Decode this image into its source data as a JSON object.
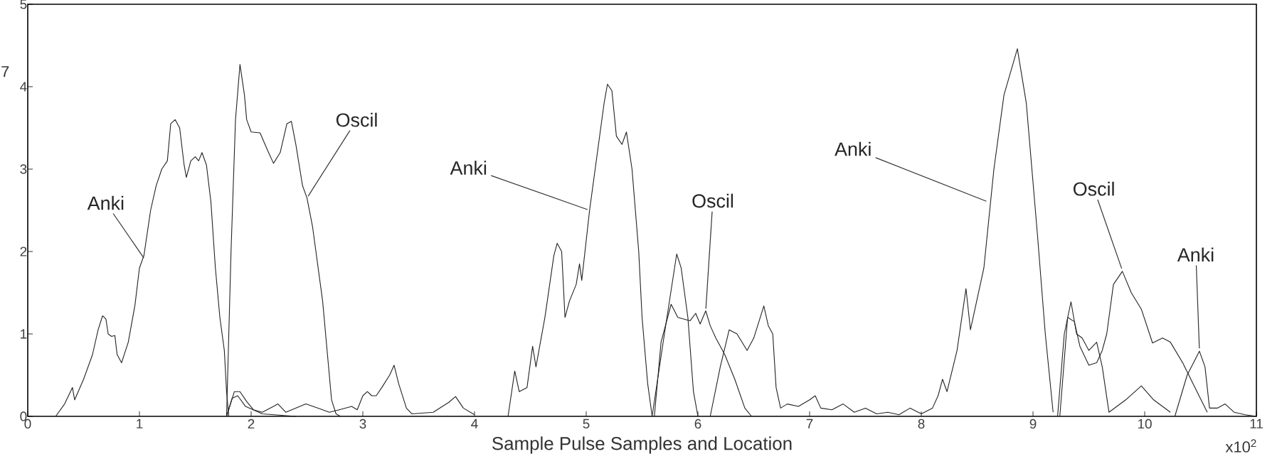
{
  "chart_data": {
    "type": "line",
    "xlabel": "Sample Pulse Samples and Location",
    "xlim": [
      0,
      11
    ],
    "xticks": [
      0,
      1,
      2,
      3,
      4,
      5,
      6,
      7,
      8,
      9,
      10,
      11
    ],
    "ylim": [
      0,
      5
    ],
    "yticks": [
      0,
      1,
      2,
      3,
      4,
      5
    ],
    "grid": false,
    "legend": false,
    "marker": "none",
    "line_style": "solid",
    "series": [
      {
        "color": "#222222",
        "x": [
          0.25,
          0.33,
          0.4,
          0.42,
          0.5,
          0.58,
          0.63,
          0.67,
          0.7,
          0.72,
          0.75,
          0.78,
          0.8,
          0.84,
          0.9,
          0.96,
          1.0,
          1.04,
          1.1,
          1.15,
          1.2,
          1.25,
          1.28,
          1.32,
          1.36,
          1.4,
          1.42,
          1.46,
          1.5,
          1.53,
          1.56,
          1.6,
          1.64,
          1.68,
          1.72,
          1.76,
          1.78,
          1.8
        ],
        "values": [
          0,
          0.15,
          0.35,
          0.2,
          0.45,
          0.75,
          1.05,
          1.22,
          1.18,
          1.0,
          0.97,
          0.98,
          0.75,
          0.65,
          0.9,
          1.35,
          1.8,
          1.95,
          2.5,
          2.8,
          3.0,
          3.1,
          3.55,
          3.6,
          3.5,
          3.05,
          2.9,
          3.1,
          3.15,
          3.1,
          3.2,
          3.05,
          2.6,
          1.8,
          1.2,
          0.8,
          0.3,
          0
        ]
      },
      {
        "color": "#222222",
        "x": [
          1.78,
          1.82,
          1.86,
          1.9,
          1.94,
          1.96,
          2.0,
          2.08,
          2.14,
          2.2,
          2.26,
          2.32,
          2.36,
          2.4,
          2.46,
          2.5,
          2.55,
          2.6,
          2.64,
          2.68,
          2.72,
          2.76,
          2.8
        ],
        "values": [
          0,
          2.0,
          3.6,
          4.27,
          3.9,
          3.6,
          3.45,
          3.44,
          3.25,
          3.07,
          3.2,
          3.55,
          3.58,
          3.3,
          2.8,
          2.65,
          2.3,
          1.8,
          1.4,
          0.8,
          0.2,
          0.03,
          0
        ]
      },
      {
        "color": "#222222",
        "x": [
          1.78,
          1.85,
          1.9,
          1.96,
          2.02,
          2.1,
          2.2,
          2.24,
          2.31,
          2.49,
          2.6,
          2.7,
          2.79,
          2.9,
          2.95,
          3.0,
          3.04,
          3.08,
          3.12,
          3.17,
          3.24,
          3.28,
          3.32,
          3.39,
          3.44,
          3.63,
          3.77,
          3.83,
          3.9,
          4.0
        ],
        "values": [
          0,
          0.3,
          0.3,
          0.18,
          0.08,
          0.05,
          0.12,
          0.15,
          0.05,
          0.15,
          0.1,
          0.05,
          0.08,
          0.12,
          0.08,
          0.25,
          0.3,
          0.25,
          0.25,
          0.35,
          0.5,
          0.62,
          0.4,
          0.1,
          0.03,
          0.05,
          0.17,
          0.24,
          0.1,
          0.02
        ]
      },
      {
        "color": "#222222",
        "x": [
          1.78,
          1.83,
          1.88,
          1.95,
          2.1,
          2.4
        ],
        "values": [
          0,
          0.22,
          0.25,
          0.12,
          0.03,
          0
        ]
      },
      {
        "color": "#222222",
        "x": [
          4.3,
          4.36,
          4.4,
          4.47,
          4.52,
          4.55,
          4.63,
          4.71,
          4.74,
          4.78,
          4.81,
          4.85,
          4.91,
          4.94,
          4.96,
          5.03,
          5.11,
          5.16,
          5.19,
          5.23,
          5.27,
          5.32,
          5.36,
          5.41,
          5.47,
          5.5,
          5.55,
          5.59
        ],
        "values": [
          0,
          0.55,
          0.3,
          0.35,
          0.85,
          0.6,
          1.2,
          1.95,
          2.1,
          2.0,
          1.2,
          1.4,
          1.6,
          1.85,
          1.65,
          2.5,
          3.3,
          3.8,
          4.03,
          3.95,
          3.4,
          3.3,
          3.45,
          3.0,
          2.0,
          1.2,
          0.4,
          0
        ]
      },
      {
        "color": "#222222",
        "x": [
          5.59,
          5.7,
          5.81,
          5.85,
          5.91,
          5.96,
          6.0
        ],
        "values": [
          0,
          1.0,
          1.97,
          1.8,
          1.2,
          0.3,
          0
        ]
      },
      {
        "color": "#222222",
        "x": [
          5.61,
          5.67,
          5.76,
          5.82,
          5.93,
          5.98,
          6.02,
          6.07,
          6.11,
          6.16,
          6.24,
          6.33,
          6.42,
          6.48
        ],
        "values": [
          0,
          0.9,
          1.36,
          1.2,
          1.16,
          1.25,
          1.12,
          1.28,
          1.1,
          0.95,
          0.75,
          0.45,
          0.1,
          0
        ]
      },
      {
        "color": "#222222",
        "x": [
          6.11,
          6.2,
          6.28,
          6.35,
          6.44,
          6.5,
          6.59,
          6.63,
          6.67,
          6.7,
          6.74,
          6.8,
          6.9,
          7.0,
          7.05,
          7.1,
          7.2,
          7.3,
          7.4,
          7.5,
          7.6,
          7.7,
          7.8,
          7.9,
          8.0,
          8.1,
          8.15,
          8.19,
          8.23,
          8.32,
          8.4,
          8.44,
          8.48,
          8.56,
          8.65,
          8.74,
          8.86,
          8.94,
          9.04,
          9.11,
          9.18
        ],
        "values": [
          0,
          0.6,
          1.05,
          1.0,
          0.8,
          0.95,
          1.34,
          1.1,
          1.0,
          0.35,
          0.1,
          0.15,
          0.12,
          0.2,
          0.25,
          0.1,
          0.08,
          0.15,
          0.05,
          0.1,
          0.03,
          0.05,
          0.02,
          0.1,
          0.03,
          0.1,
          0.25,
          0.45,
          0.3,
          0.8,
          1.55,
          1.05,
          1.3,
          1.8,
          3.0,
          3.9,
          4.46,
          3.8,
          2.2,
          1.0,
          0.05
        ]
      },
      {
        "color": "#222222",
        "x": [
          9.22,
          9.28,
          9.34,
          9.39,
          9.44,
          9.5,
          9.57,
          9.62,
          9.68,
          9.83,
          9.97,
          10.08,
          10.23
        ],
        "values": [
          0,
          1.0,
          1.39,
          1.0,
          0.95,
          0.8,
          0.9,
          0.6,
          0.05,
          0.2,
          0.37,
          0.2,
          0.05
        ]
      },
      {
        "color": "#222222",
        "x": [
          9.24,
          9.31,
          9.37,
          9.42,
          9.5,
          9.57,
          9.62,
          9.66,
          9.72,
          9.8,
          9.88,
          9.97,
          10.07,
          10.16,
          10.23,
          10.34,
          10.45,
          10.56
        ],
        "values": [
          0,
          1.2,
          1.15,
          0.85,
          0.62,
          0.65,
          0.8,
          1.0,
          1.6,
          1.76,
          1.5,
          1.3,
          0.89,
          0.95,
          0.9,
          0.65,
          0.35,
          0.05
        ]
      },
      {
        "color": "#222222",
        "x": [
          10.27,
          10.38,
          10.49,
          10.54,
          10.58,
          10.65,
          10.72,
          10.8,
          10.9,
          11.0
        ],
        "values": [
          0,
          0.5,
          0.79,
          0.6,
          0.1,
          0.1,
          0.15,
          0.05,
          0.02,
          0
        ]
      }
    ],
    "annotations": [
      "7",
      "x10$^{2}$",
      {
        "text": "Anki",
        "x": 1.05,
        "y": 1.9
      },
      {
        "text": "Oscil",
        "x": 2.5,
        "y": 2.65
      },
      {
        "text": "Anki",
        "x": 5.03,
        "y": 2.5
      },
      {
        "text": "Oscil",
        "x": 6.07,
        "y": 1.28
      },
      {
        "text": "Anki",
        "x": 8.6,
        "y": 2.6
      },
      {
        "text": "Oscil",
        "x": 9.8,
        "y": 1.77
      },
      {
        "text": "Anki",
        "x": 10.49,
        "y": 0.8
      }
    ]
  }
}
